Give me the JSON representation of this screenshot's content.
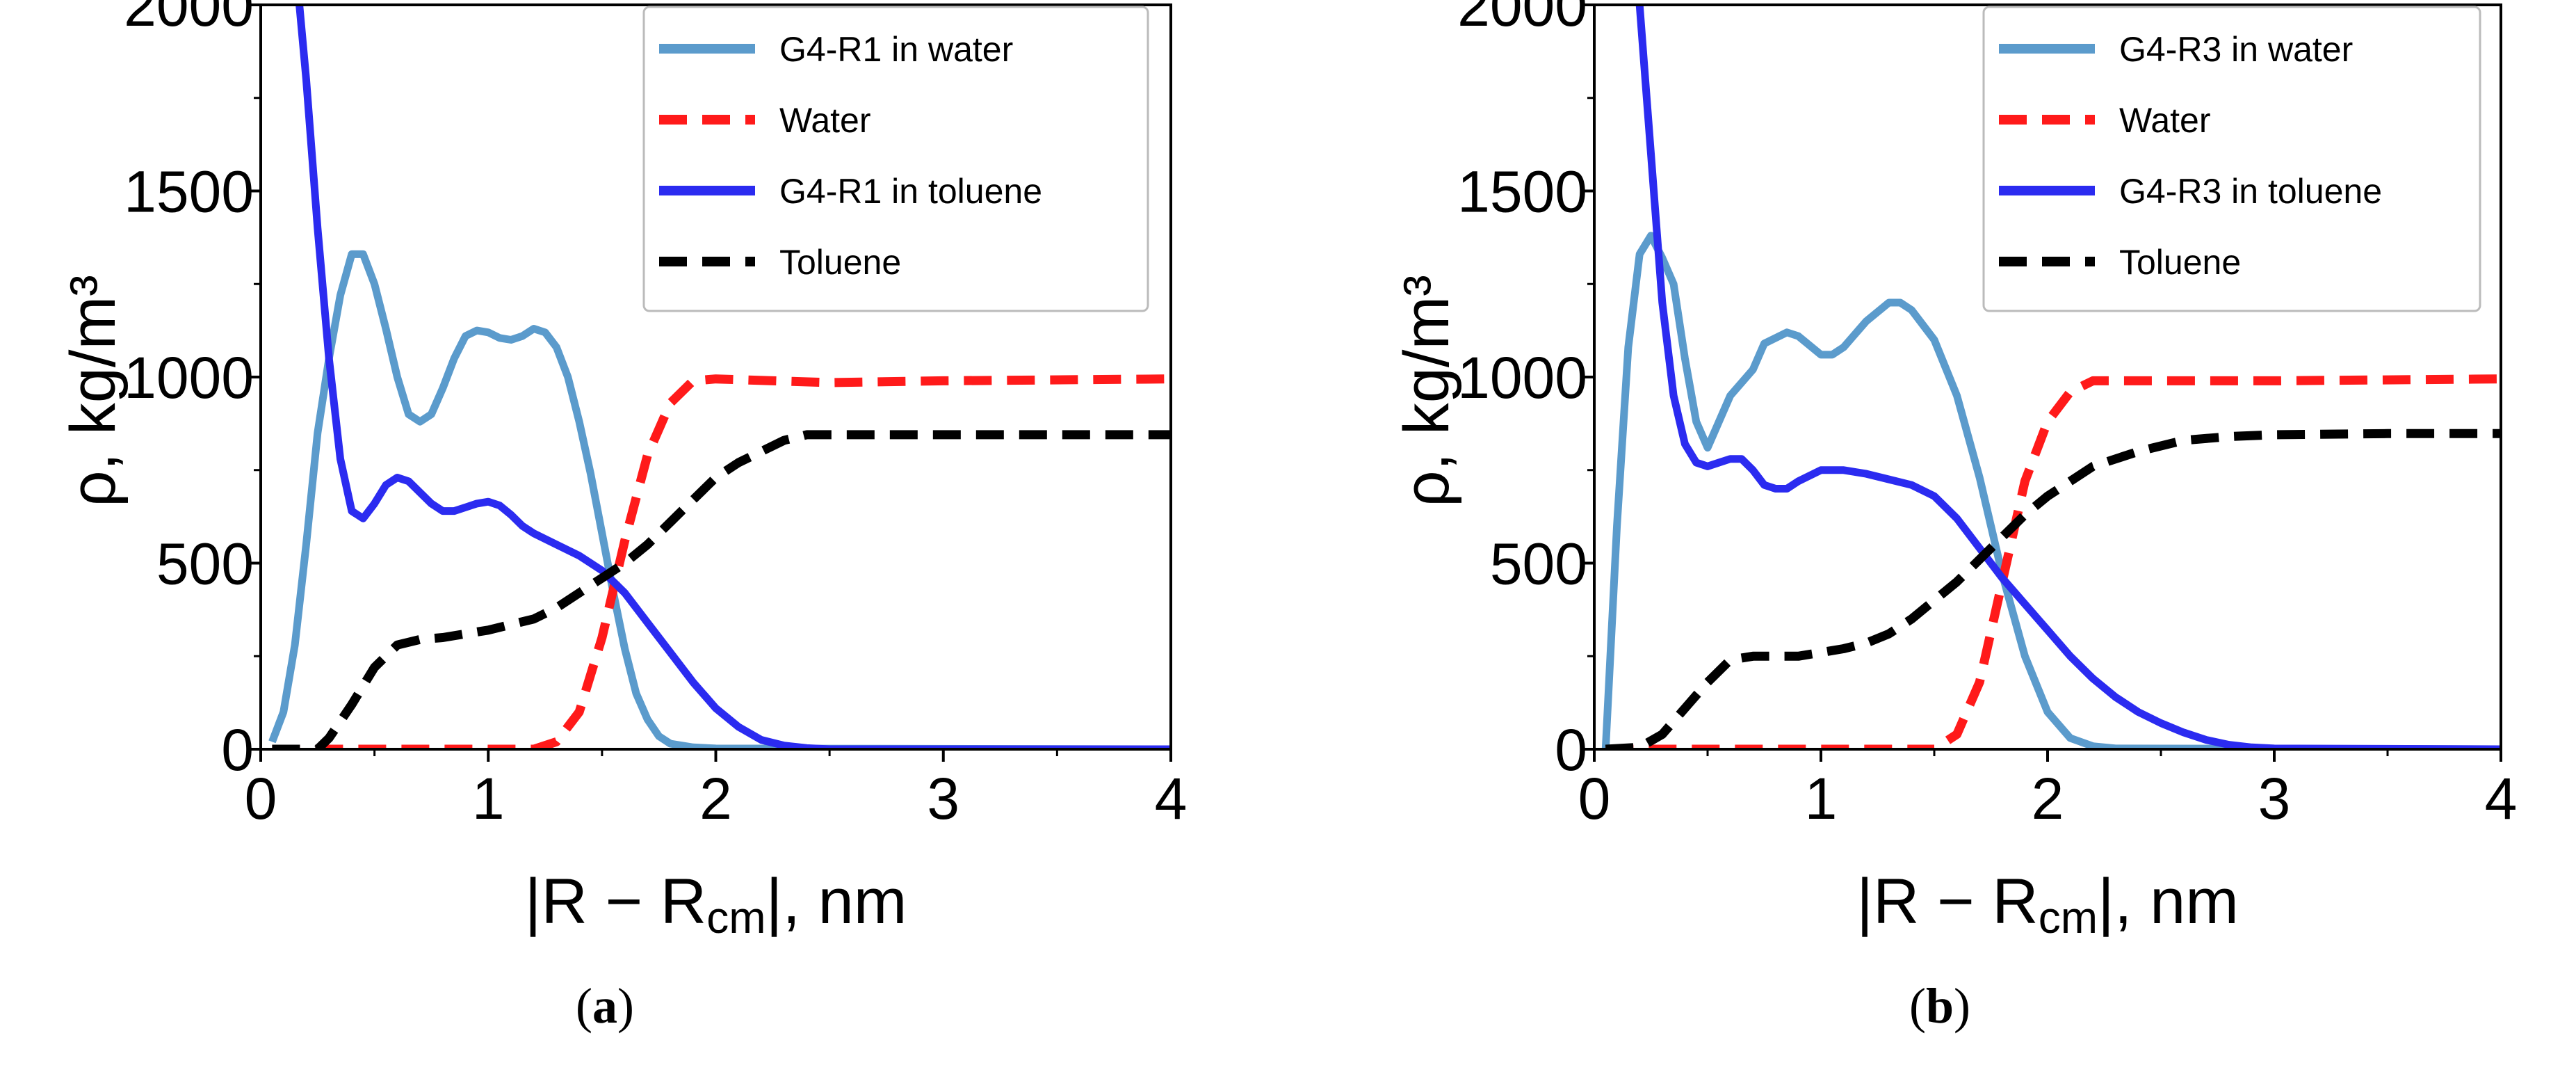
{
  "chart_data": [
    {
      "type": "line",
      "caption": "(a)",
      "caption_letter": "a",
      "xlabel": "|R − R_cm|, nm",
      "xlabel_parts": [
        "|R − R",
        "cm",
        "|, nm"
      ],
      "ylabel": "ρ, kg/m³",
      "xlim": [
        0,
        4
      ],
      "ylim": [
        0,
        2000
      ],
      "xticks": [
        "0",
        "1",
        "2",
        "3",
        "4"
      ],
      "yticks": [
        "0",
        "500",
        "1000",
        "1500",
        "2000"
      ],
      "legend_position": "top-right",
      "series": [
        {
          "name": "G4-R1 in water",
          "color": "#5b9bcc",
          "dash": false,
          "x": [
            0.05,
            0.1,
            0.15,
            0.2,
            0.25,
            0.3,
            0.35,
            0.4,
            0.45,
            0.5,
            0.55,
            0.6,
            0.65,
            0.7,
            0.75,
            0.8,
            0.85,
            0.9,
            0.95,
            1.0,
            1.05,
            1.1,
            1.15,
            1.2,
            1.25,
            1.3,
            1.35,
            1.4,
            1.45,
            1.5,
            1.55,
            1.6,
            1.65,
            1.7,
            1.75,
            1.8,
            1.9,
            2.0,
            4.0
          ],
          "y": [
            20,
            100,
            280,
            550,
            850,
            1050,
            1220,
            1330,
            1330,
            1250,
            1130,
            1000,
            900,
            880,
            900,
            970,
            1050,
            1110,
            1125,
            1120,
            1105,
            1100,
            1110,
            1130,
            1120,
            1080,
            1000,
            880,
            740,
            580,
            420,
            270,
            150,
            80,
            35,
            15,
            5,
            2,
            0
          ]
        },
        {
          "name": "Water",
          "color": "#ff1a1a",
          "dash": true,
          "x": [
            0.05,
            1.2,
            1.3,
            1.4,
            1.5,
            1.6,
            1.7,
            1.8,
            1.9,
            2.0,
            2.5,
            3.0,
            4.0
          ],
          "y": [
            0,
            0,
            20,
            100,
            300,
            560,
            790,
            930,
            990,
            995,
            985,
            990,
            995
          ]
        },
        {
          "name": "G4-R1 in toluene",
          "color": "#2b2bf0",
          "dash": false,
          "x": [
            0.17,
            0.2,
            0.25,
            0.3,
            0.35,
            0.4,
            0.45,
            0.5,
            0.55,
            0.6,
            0.65,
            0.7,
            0.75,
            0.8,
            0.85,
            0.9,
            0.95,
            1.0,
            1.05,
            1.1,
            1.15,
            1.2,
            1.3,
            1.4,
            1.5,
            1.6,
            1.7,
            1.8,
            1.9,
            2.0,
            2.1,
            2.2,
            2.3,
            2.4,
            2.5,
            4.0
          ],
          "y": [
            2000,
            1800,
            1400,
            1050,
            780,
            640,
            620,
            660,
            710,
            730,
            720,
            690,
            660,
            640,
            640,
            650,
            660,
            665,
            655,
            630,
            600,
            580,
            550,
            520,
            480,
            420,
            340,
            260,
            180,
            110,
            60,
            25,
            10,
            3,
            0,
            0
          ]
        },
        {
          "name": "Toluene",
          "color": "#000000",
          "dash": true,
          "x": [
            0.05,
            0.25,
            0.3,
            0.4,
            0.5,
            0.6,
            0.7,
            0.8,
            0.9,
            1.0,
            1.1,
            1.2,
            1.3,
            1.4,
            1.5,
            1.6,
            1.7,
            1.8,
            1.9,
            2.0,
            2.1,
            2.2,
            2.3,
            2.4,
            2.5,
            3.0,
            4.0
          ],
          "y": [
            0,
            0,
            30,
            120,
            220,
            280,
            295,
            300,
            310,
            320,
            335,
            350,
            380,
            420,
            460,
            500,
            550,
            610,
            670,
            730,
            770,
            800,
            830,
            845,
            845,
            845,
            845
          ]
        }
      ]
    },
    {
      "type": "line",
      "caption": "(b)",
      "caption_letter": "b",
      "xlabel": "|R − R_cm|, nm",
      "xlabel_parts": [
        "|R − R",
        "cm",
        "|, nm"
      ],
      "ylabel": "ρ, kg/m³",
      "xlim": [
        0,
        4
      ],
      "ylim": [
        0,
        2000
      ],
      "xticks": [
        "0",
        "1",
        "2",
        "3",
        "4"
      ],
      "yticks": [
        "0",
        "500",
        "1000",
        "1500",
        "2000"
      ],
      "legend_position": "top-right",
      "series": [
        {
          "name": "G4-R3 in water",
          "color": "#5b9bcc",
          "dash": false,
          "x": [
            0.05,
            0.1,
            0.15,
            0.2,
            0.25,
            0.3,
            0.35,
            0.4,
            0.45,
            0.5,
            0.55,
            0.6,
            0.7,
            0.75,
            0.85,
            0.9,
            1.0,
            1.05,
            1.1,
            1.2,
            1.3,
            1.35,
            1.4,
            1.5,
            1.6,
            1.7,
            1.8,
            1.9,
            2.0,
            2.1,
            2.2,
            2.3,
            4.0
          ],
          "y": [
            0,
            600,
            1080,
            1330,
            1380,
            1320,
            1250,
            1050,
            880,
            810,
            880,
            950,
            1020,
            1090,
            1120,
            1110,
            1060,
            1060,
            1080,
            1150,
            1200,
            1200,
            1180,
            1100,
            950,
            730,
            470,
            250,
            100,
            30,
            8,
            2,
            0
          ]
        },
        {
          "name": "Water",
          "color": "#ff1a1a",
          "dash": true,
          "x": [
            0.05,
            1.5,
            1.6,
            1.7,
            1.8,
            1.9,
            2.0,
            2.1,
            2.2,
            2.5,
            3.0,
            4.0
          ],
          "y": [
            0,
            0,
            40,
            180,
            450,
            720,
            880,
            960,
            990,
            990,
            990,
            995
          ]
        },
        {
          "name": "G4-R3 in toluene",
          "color": "#2b2bf0",
          "dash": false,
          "x": [
            0.2,
            0.25,
            0.3,
            0.35,
            0.4,
            0.45,
            0.5,
            0.55,
            0.6,
            0.65,
            0.7,
            0.75,
            0.8,
            0.85,
            0.9,
            1.0,
            1.1,
            1.2,
            1.3,
            1.4,
            1.5,
            1.6,
            1.7,
            1.8,
            1.9,
            2.0,
            2.1,
            2.2,
            2.3,
            2.4,
            2.5,
            2.6,
            2.7,
            2.8,
            2.9,
            3.0,
            4.0
          ],
          "y": [
            2000,
            1600,
            1200,
            950,
            820,
            770,
            760,
            770,
            780,
            780,
            750,
            710,
            700,
            700,
            720,
            750,
            750,
            740,
            725,
            710,
            680,
            620,
            540,
            460,
            390,
            320,
            250,
            190,
            140,
            100,
            70,
            45,
            25,
            12,
            5,
            2,
            0
          ]
        },
        {
          "name": "Toluene",
          "color": "#000000",
          "dash": true,
          "x": [
            0.05,
            0.2,
            0.3,
            0.4,
            0.5,
            0.6,
            0.7,
            0.8,
            0.9,
            1.0,
            1.1,
            1.2,
            1.3,
            1.4,
            1.5,
            1.6,
            1.7,
            1.8,
            1.9,
            2.0,
            2.1,
            2.2,
            2.4,
            2.6,
            2.8,
            3.0,
            3.5,
            4.0
          ],
          "y": [
            0,
            5,
            40,
            110,
            180,
            240,
            250,
            250,
            250,
            260,
            270,
            285,
            310,
            350,
            400,
            450,
            510,
            570,
            630,
            680,
            720,
            760,
            800,
            830,
            840,
            845,
            848,
            848
          ]
        }
      ]
    }
  ]
}
